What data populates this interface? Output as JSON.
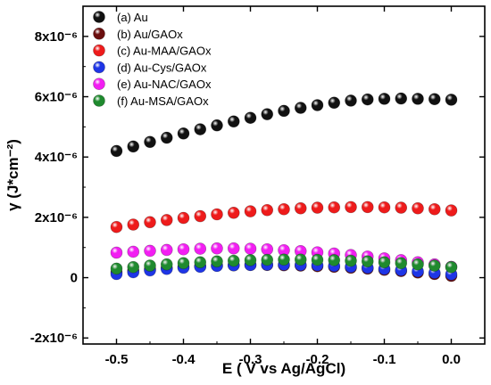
{
  "chart_data": {
    "type": "scatter",
    "xlabel": "E ( V vs Ag/AgCl)",
    "ylabel": "γ (J*cm⁻²)",
    "xlim": [
      -0.55,
      0.05
    ],
    "ylim": [
      -2.2e-06,
      9e-06
    ],
    "x_ticks": [
      -0.5,
      -0.4,
      -0.3,
      -0.2,
      -0.1,
      0.0
    ],
    "x_tick_labels": [
      "-0.5",
      "-0.4",
      "-0.3",
      "-0.2",
      "-0.1",
      "0.0"
    ],
    "y_ticks": [
      -2e-06,
      0,
      2e-06,
      4e-06,
      6e-06,
      8e-06
    ],
    "y_tick_labels": [
      "-2x10⁻⁶",
      "0",
      "2x10⁻⁶",
      "4x10⁻⁶",
      "6x10⁻⁶",
      "8x10⁻⁶"
    ],
    "legend_position": "top-left",
    "grid": false,
    "x": [
      -0.5,
      -0.475,
      -0.45,
      -0.425,
      -0.4,
      -0.375,
      -0.35,
      -0.325,
      -0.3,
      -0.275,
      -0.25,
      -0.225,
      -0.2,
      -0.175,
      -0.15,
      -0.125,
      -0.1,
      -0.075,
      -0.05,
      -0.025,
      0.0
    ],
    "series": [
      {
        "name": "(a) Au",
        "color": "#111111",
        "values": [
          4.2e-06,
          4.35e-06,
          4.5e-06,
          4.64e-06,
          4.78e-06,
          4.92e-06,
          5.05e-06,
          5.18e-06,
          5.3e-06,
          5.42e-06,
          5.53e-06,
          5.63e-06,
          5.72e-06,
          5.8e-06,
          5.87e-06,
          5.91e-06,
          5.93e-06,
          5.94e-06,
          5.93e-06,
          5.92e-06,
          5.9e-06
        ]
      },
      {
        "name": "(b) Au/GAOx",
        "color": "#6b0e0e",
        "values": [
          1.8e-07,
          2.3e-07,
          2.8e-07,
          3.2e-07,
          3.5e-07,
          3.8e-07,
          4e-07,
          4.1e-07,
          4.2e-07,
          4.2e-07,
          4.1e-07,
          4e-07,
          3.8e-07,
          3.6e-07,
          3.3e-07,
          3e-07,
          2.6e-07,
          2.2e-07,
          1.7e-07,
          1.2e-07,
          6e-08
        ]
      },
      {
        "name": "(c) Au-MAA/GAOx",
        "color": "#ee1b1b",
        "values": [
          1.68e-06,
          1.76e-06,
          1.84e-06,
          1.91e-06,
          1.98e-06,
          2.04e-06,
          2.1e-06,
          2.15e-06,
          2.2e-06,
          2.24e-06,
          2.27e-06,
          2.3e-06,
          2.32e-06,
          2.33e-06,
          2.34e-06,
          2.34e-06,
          2.33e-06,
          2.32e-06,
          2.3e-06,
          2.27e-06,
          2.23e-06
        ]
      },
      {
        "name": "(d) Au-Cys/GAOx",
        "color": "#1e35e6",
        "values": [
          1.2e-07,
          1.8e-07,
          2.4e-07,
          2.9e-07,
          3.3e-07,
          3.6e-07,
          3.9e-07,
          4.1e-07,
          4.2e-07,
          4.3e-07,
          4.3e-07,
          4.2e-07,
          4.1e-07,
          3.9e-07,
          3.6e-07,
          3.3e-07,
          2.9e-07,
          2.5e-07,
          2.1e-07,
          1.6e-07,
          1.1e-07
        ]
      },
      {
        "name": "(e) Au-NAC/GAOx",
        "color": "#f21ef2",
        "values": [
          8.3e-07,
          8.6e-07,
          8.9e-07,
          9.2e-07,
          9.4e-07,
          9.6e-07,
          9.7e-07,
          9.7e-07,
          9.6e-07,
          9.4e-07,
          9.1e-07,
          8.8e-07,
          8.4e-07,
          8e-07,
          7.5e-07,
          7e-07,
          6.4e-07,
          5.8e-07,
          5.1e-07,
          4.4e-07,
          3.6e-07
        ]
      },
      {
        "name": "(f) Au-MSA/GAOx",
        "color": "#1f8a2e",
        "values": [
          3e-07,
          3.5e-07,
          4e-07,
          4.4e-07,
          4.8e-07,
          5.1e-07,
          5.4e-07,
          5.6e-07,
          5.8e-07,
          5.9e-07,
          6e-07,
          6e-07,
          5.9e-07,
          5.8e-07,
          5.6e-07,
          5.4e-07,
          5.1e-07,
          4.8e-07,
          4.4e-07,
          4e-07,
          3.5e-07
        ]
      }
    ]
  }
}
